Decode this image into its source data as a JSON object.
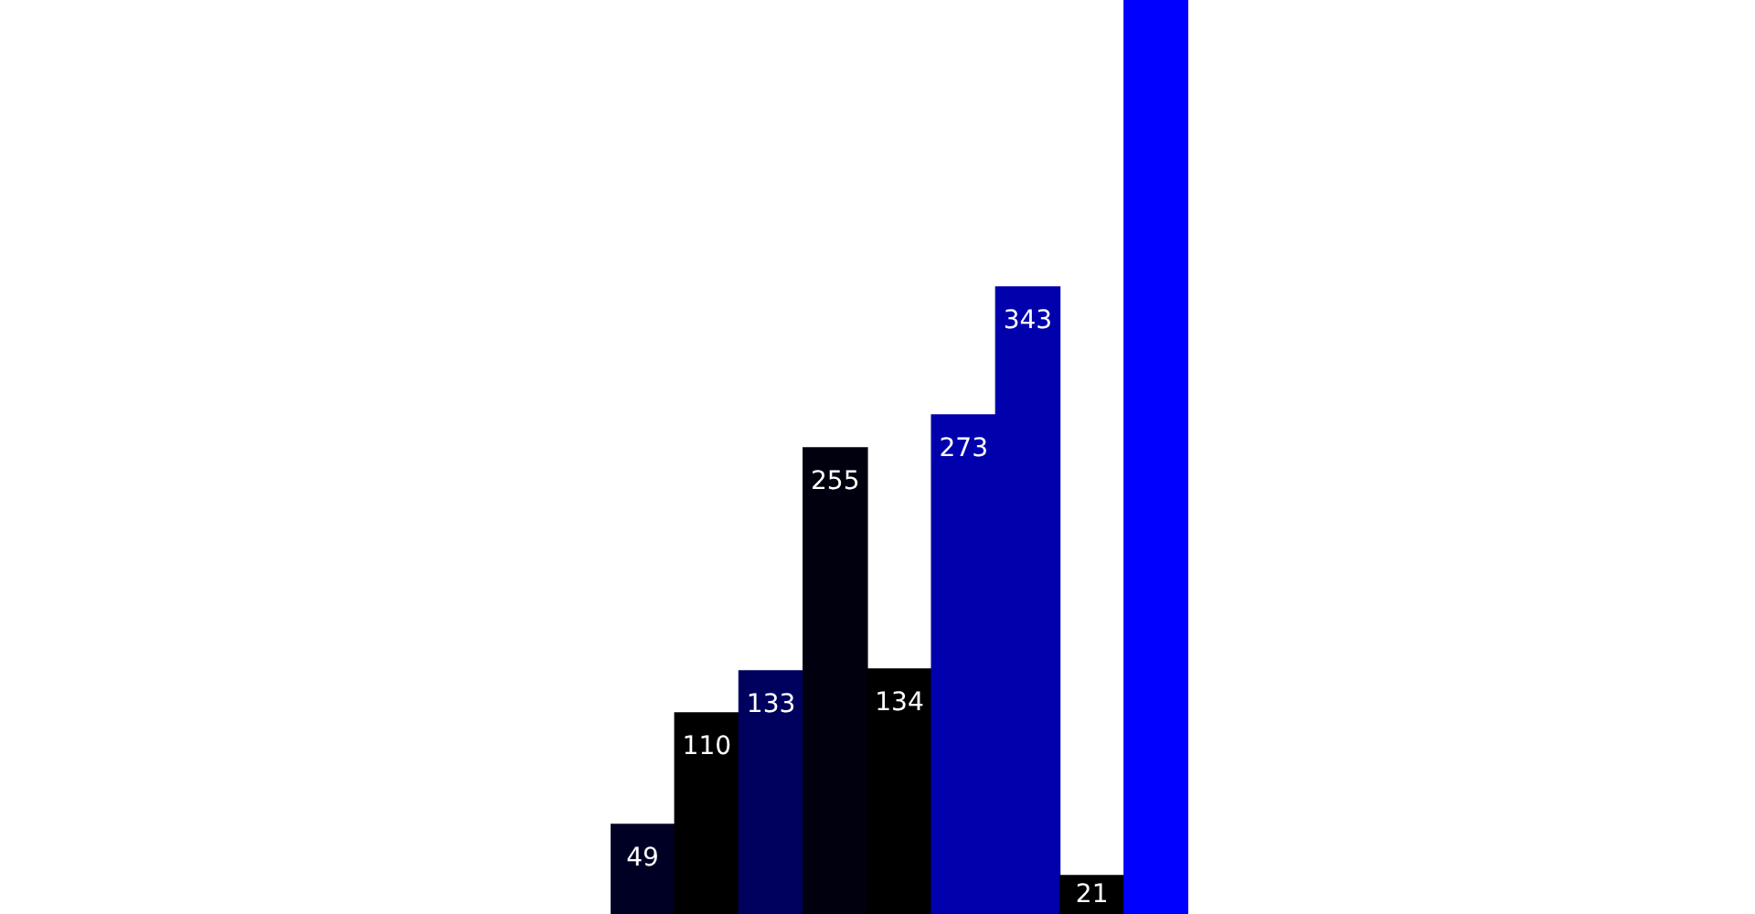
{
  "chart_data": {
    "type": "bar",
    "categories": [
      null,
      null,
      null,
      null,
      null,
      null,
      null,
      null,
      null
    ],
    "values": [
      49,
      110,
      133,
      255,
      134,
      273,
      343,
      21,
      500
    ],
    "colors": [
      "#000024",
      "#000000",
      "#00005e",
      "#00000e",
      "#000000",
      "#0000ad",
      "#0000ad",
      "#000000",
      "#0000ff"
    ],
    "value_labels": [
      "49",
      "110",
      "133",
      "255",
      "134",
      "273",
      "343",
      "21",
      null
    ],
    "ylim": [
      0,
      500
    ]
  }
}
